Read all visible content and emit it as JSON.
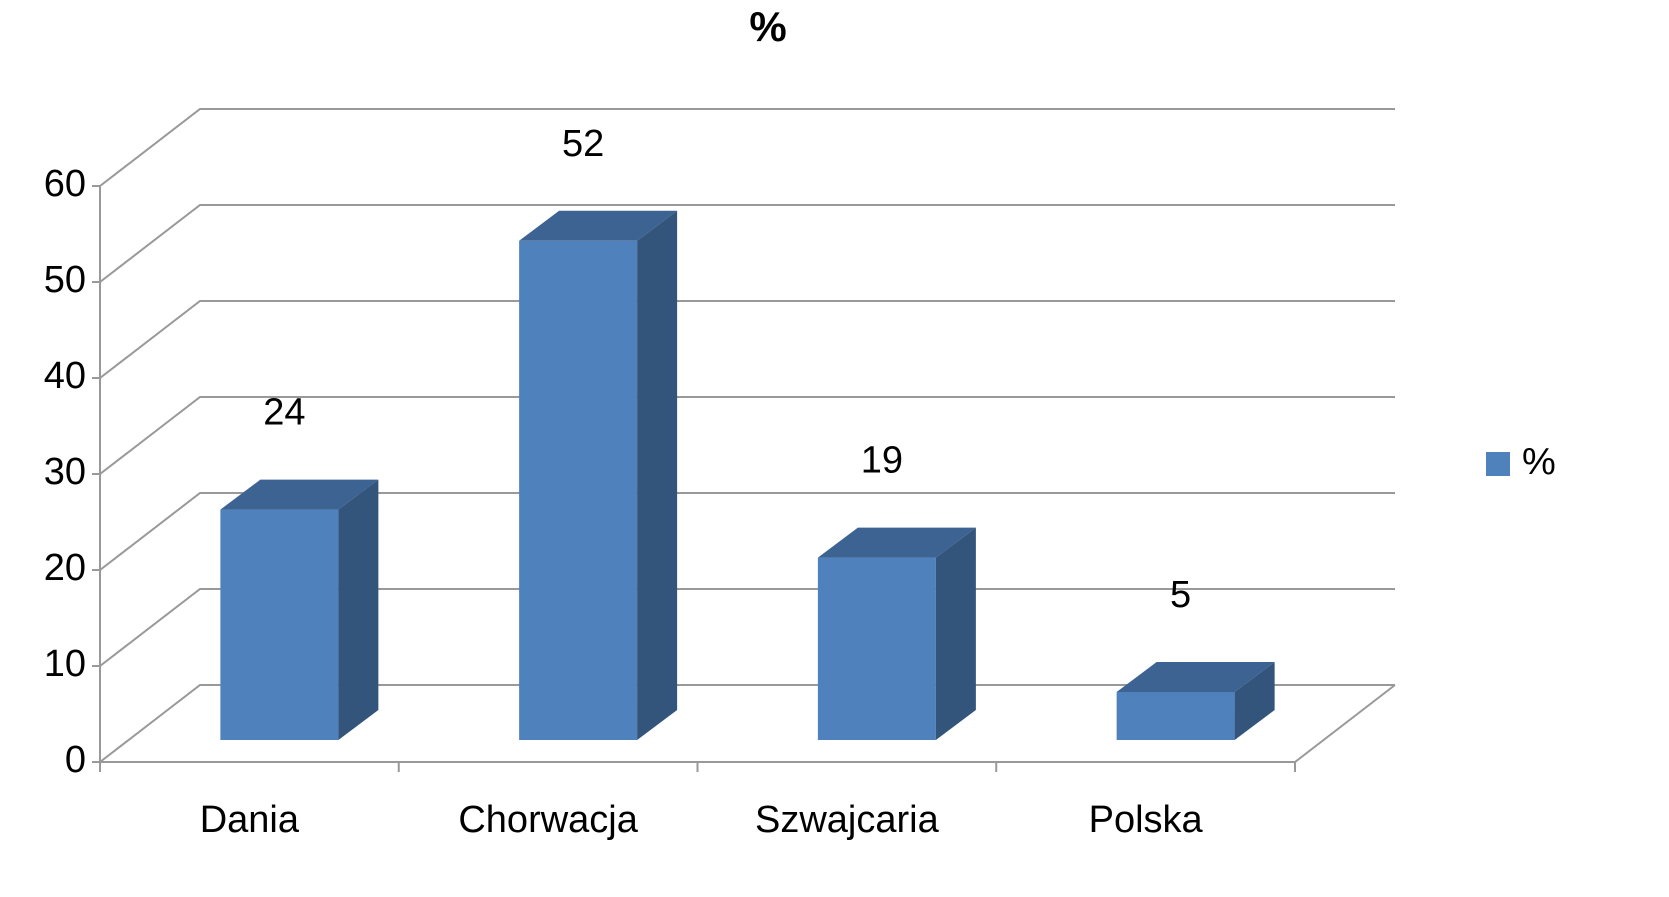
{
  "chart_data": {
    "type": "bar",
    "title": "%",
    "categories": [
      "Dania",
      "Chorwacja",
      "Szwajcaria",
      "Polska"
    ],
    "series": [
      {
        "name": "%",
        "color": "#4f81bd",
        "values": [
          24,
          52,
          19,
          5
        ]
      }
    ],
    "ylim": [
      0,
      60
    ],
    "yticks": [
      0,
      10,
      20,
      30,
      40,
      50,
      60
    ],
    "grid": true,
    "legend": "right"
  }
}
